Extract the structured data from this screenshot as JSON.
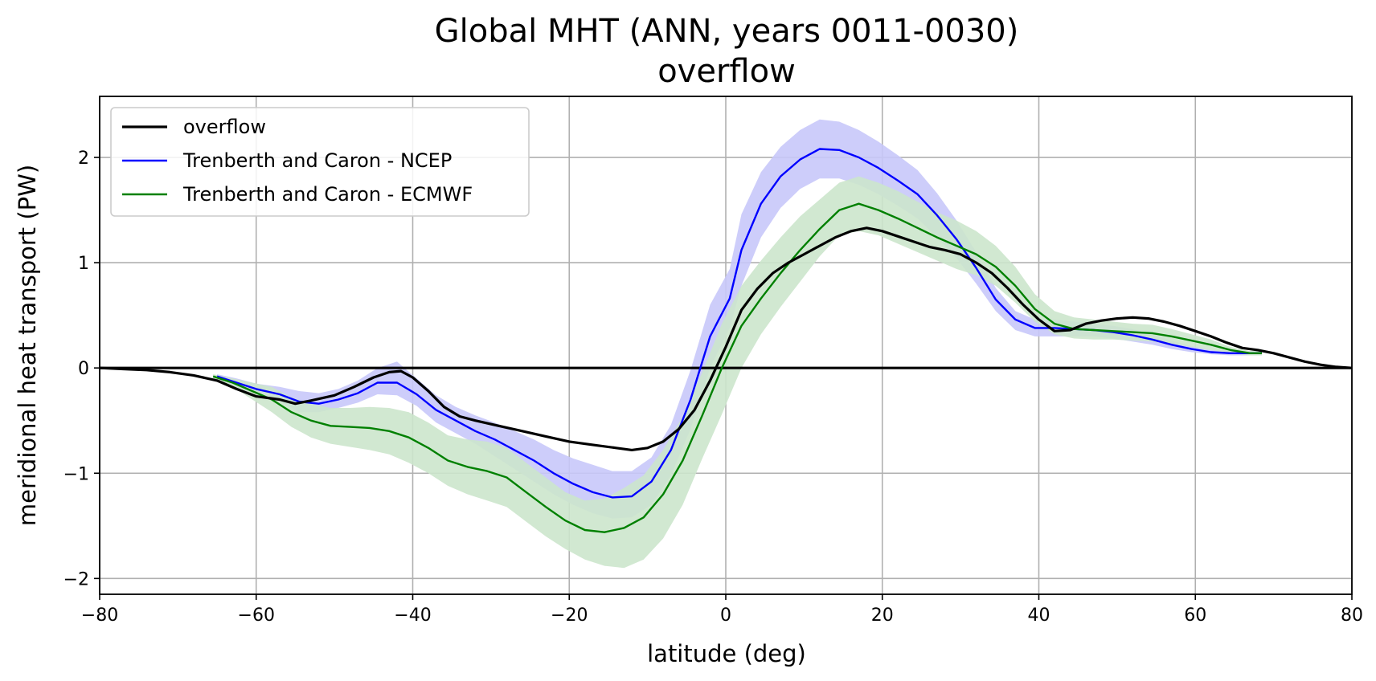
{
  "chart_data": {
    "type": "line",
    "title": "Global MHT (ANN, years 0011-0030)",
    "subtitle": "overflow",
    "xlabel": "latitude (deg)",
    "ylabel": "meridional heat transport (PW)",
    "xlim": [
      -80,
      80
    ],
    "ylim": [
      -2.15,
      2.58
    ],
    "x_ticks": [
      -80,
      -60,
      -40,
      -20,
      0,
      20,
      40,
      60,
      80
    ],
    "x_tick_labels": [
      "−80",
      "−60",
      "−40",
      "−20",
      "0",
      "20",
      "40",
      "60",
      "80"
    ],
    "y_ticks": [
      -2,
      -1,
      0,
      1,
      2
    ],
    "y_tick_labels": [
      "−2",
      "−1",
      "0",
      "1",
      "2"
    ],
    "grid": true,
    "legend_position": "top-left",
    "reference_line": 0,
    "series": [
      {
        "name": "overflow",
        "color": "#000000",
        "x": [
          -80,
          -77,
          -74,
          -71,
          -68,
          -65,
          -62.5,
          -60,
          -57,
          -55,
          -53,
          -50,
          -47.5,
          -45,
          -43,
          -41.5,
          -40,
          -38,
          -36,
          -34,
          -32,
          -29,
          -26,
          -23,
          -20,
          -17,
          -14,
          -12,
          -10,
          -8,
          -6,
          -4,
          -2,
          0,
          2,
          4,
          6,
          8,
          10,
          12,
          14,
          16,
          18,
          20,
          22,
          24,
          26,
          28,
          30,
          32,
          34,
          36,
          38,
          40,
          42,
          44,
          46,
          48,
          50,
          52,
          54,
          56,
          58,
          60,
          62,
          64,
          66,
          68,
          70,
          72,
          74,
          76,
          78,
          80
        ],
        "y": [
          0,
          -0.01,
          -0.02,
          -0.04,
          -0.07,
          -0.12,
          -0.2,
          -0.27,
          -0.3,
          -0.34,
          -0.31,
          -0.26,
          -0.18,
          -0.09,
          -0.04,
          -0.03,
          -0.09,
          -0.22,
          -0.37,
          -0.46,
          -0.5,
          -0.55,
          -0.6,
          -0.65,
          -0.7,
          -0.73,
          -0.76,
          -0.78,
          -0.76,
          -0.7,
          -0.58,
          -0.4,
          -0.12,
          0.2,
          0.55,
          0.75,
          0.9,
          1.0,
          1.08,
          1.16,
          1.24,
          1.3,
          1.33,
          1.3,
          1.25,
          1.2,
          1.15,
          1.12,
          1.08,
          1.0,
          0.9,
          0.76,
          0.6,
          0.46,
          0.35,
          0.36,
          0.42,
          0.45,
          0.47,
          0.48,
          0.47,
          0.44,
          0.4,
          0.35,
          0.3,
          0.24,
          0.19,
          0.17,
          0.14,
          0.1,
          0.06,
          0.03,
          0.01,
          0
        ]
      },
      {
        "name": "Trenberth and Caron - NCEP",
        "color": "#0000ff",
        "band_color": "#c8c8fa",
        "x": [
          -65,
          -62.5,
          -60,
          -57,
          -54.5,
          -52,
          -49.5,
          -47,
          -44.5,
          -42,
          -39.5,
          -37,
          -34.5,
          -32,
          -29.5,
          -27,
          -24.5,
          -22,
          -19.5,
          -17,
          -14.5,
          -12,
          -9.5,
          -7,
          -4.5,
          -2,
          0.5,
          2,
          4.5,
          7,
          9.5,
          12,
          14.5,
          17,
          19.5,
          22,
          24.5,
          27,
          29.5,
          32,
          34.5,
          37,
          39.5,
          42,
          44.5,
          47,
          49.5,
          52,
          54.5,
          57,
          59.5,
          62,
          64.5,
          67,
          68.5
        ],
        "y": [
          -0.08,
          -0.14,
          -0.2,
          -0.25,
          -0.32,
          -0.34,
          -0.3,
          -0.24,
          -0.14,
          -0.14,
          -0.25,
          -0.4,
          -0.5,
          -0.6,
          -0.68,
          -0.78,
          -0.88,
          -1.0,
          -1.1,
          -1.18,
          -1.23,
          -1.22,
          -1.08,
          -0.78,
          -0.3,
          0.3,
          0.66,
          1.12,
          1.56,
          1.82,
          1.98,
          2.08,
          2.07,
          2.0,
          1.9,
          1.78,
          1.65,
          1.45,
          1.22,
          0.95,
          0.65,
          0.46,
          0.38,
          0.38,
          0.37,
          0.36,
          0.34,
          0.31,
          0.27,
          0.22,
          0.18,
          0.15,
          0.14,
          0.14,
          0.14
        ],
        "lower": [
          -0.1,
          -0.18,
          -0.25,
          -0.32,
          -0.42,
          -0.42,
          -0.38,
          -0.33,
          -0.25,
          -0.26,
          -0.36,
          -0.52,
          -0.62,
          -0.72,
          -0.84,
          -0.96,
          -1.08,
          -1.2,
          -1.3,
          -1.38,
          -1.43,
          -1.42,
          -1.3,
          -1.02,
          -0.58,
          0.0,
          0.38,
          0.78,
          1.24,
          1.52,
          1.7,
          1.8,
          1.8,
          1.74,
          1.65,
          1.54,
          1.42,
          1.24,
          1.04,
          0.8,
          0.54,
          0.36,
          0.3,
          0.3,
          0.3,
          0.3,
          0.28,
          0.25,
          0.22,
          0.18,
          0.15,
          0.13,
          0.12,
          0.12,
          0.12
        ],
        "upper": [
          -0.06,
          -0.1,
          -0.15,
          -0.18,
          -0.22,
          -0.24,
          -0.2,
          -0.12,
          0.0,
          0.06,
          -0.1,
          -0.26,
          -0.37,
          -0.45,
          -0.52,
          -0.6,
          -0.68,
          -0.78,
          -0.86,
          -0.92,
          -0.98,
          -0.98,
          -0.85,
          -0.54,
          -0.02,
          0.6,
          0.94,
          1.46,
          1.86,
          2.1,
          2.26,
          2.36,
          2.34,
          2.26,
          2.15,
          2.02,
          1.88,
          1.66,
          1.4,
          1.1,
          0.76,
          0.54,
          0.46,
          0.46,
          0.44,
          0.42,
          0.4,
          0.37,
          0.32,
          0.26,
          0.21,
          0.17,
          0.16,
          0.16,
          0.16
        ]
      },
      {
        "name": "Trenberth and Caron - ECMWF",
        "color": "#008000",
        "band_color": "#cce6cc",
        "x": [
          -65.5,
          -63,
          -60.5,
          -58,
          -55.5,
          -53,
          -50.5,
          -48,
          -45.5,
          -43,
          -40.5,
          -38,
          -35.5,
          -33,
          -30.5,
          -28,
          -25.5,
          -23,
          -20.5,
          -18,
          -15.5,
          -13,
          -10.5,
          -8,
          -5.5,
          -3,
          -0.5,
          2,
          4.5,
          7,
          9.5,
          12,
          14.5,
          17,
          19.5,
          22,
          24.5,
          27,
          29.5,
          32,
          34.5,
          37,
          39.5,
          42,
          44.5,
          47,
          49.5,
          52,
          54.5,
          57,
          59.5,
          62,
          64.5,
          67,
          68.5
        ],
        "y": [
          -0.08,
          -0.14,
          -0.22,
          -0.3,
          -0.42,
          -0.5,
          -0.55,
          -0.56,
          -0.57,
          -0.6,
          -0.66,
          -0.76,
          -0.88,
          -0.94,
          -0.98,
          -1.04,
          -1.18,
          -1.32,
          -1.45,
          -1.54,
          -1.56,
          -1.52,
          -1.42,
          -1.2,
          -0.88,
          -0.45,
          0.0,
          0.4,
          0.66,
          0.9,
          1.12,
          1.32,
          1.5,
          1.56,
          1.5,
          1.42,
          1.33,
          1.24,
          1.16,
          1.08,
          0.96,
          0.78,
          0.56,
          0.42,
          0.37,
          0.36,
          0.35,
          0.34,
          0.33,
          0.3,
          0.26,
          0.22,
          0.17,
          0.14,
          0.14
        ],
        "lower": [
          -0.1,
          -0.18,
          -0.3,
          -0.42,
          -0.56,
          -0.66,
          -0.72,
          -0.75,
          -0.78,
          -0.82,
          -0.9,
          -1.0,
          -1.12,
          -1.2,
          -1.26,
          -1.32,
          -1.46,
          -1.6,
          -1.72,
          -1.82,
          -1.88,
          -1.9,
          -1.82,
          -1.62,
          -1.3,
          -0.86,
          -0.44,
          0.0,
          0.32,
          0.58,
          0.82,
          1.06,
          1.26,
          1.3,
          1.26,
          1.18,
          1.1,
          1.02,
          0.94,
          0.88,
          0.78,
          0.62,
          0.44,
          0.32,
          0.28,
          0.27,
          0.27,
          0.26,
          0.25,
          0.23,
          0.2,
          0.17,
          0.14,
          0.12,
          0.12
        ],
        "upper": [
          -0.06,
          -0.1,
          -0.14,
          -0.18,
          -0.28,
          -0.34,
          -0.38,
          -0.38,
          -0.37,
          -0.38,
          -0.42,
          -0.52,
          -0.64,
          -0.68,
          -0.7,
          -0.76,
          -0.9,
          -1.04,
          -1.18,
          -1.26,
          -1.24,
          -1.14,
          -1.02,
          -0.78,
          -0.46,
          -0.04,
          0.42,
          0.78,
          1.02,
          1.24,
          1.44,
          1.6,
          1.76,
          1.82,
          1.76,
          1.68,
          1.58,
          1.48,
          1.4,
          1.3,
          1.16,
          0.96,
          0.7,
          0.54,
          0.48,
          0.46,
          0.44,
          0.42,
          0.41,
          0.37,
          0.32,
          0.27,
          0.2,
          0.16,
          0.16
        ]
      }
    ]
  }
}
